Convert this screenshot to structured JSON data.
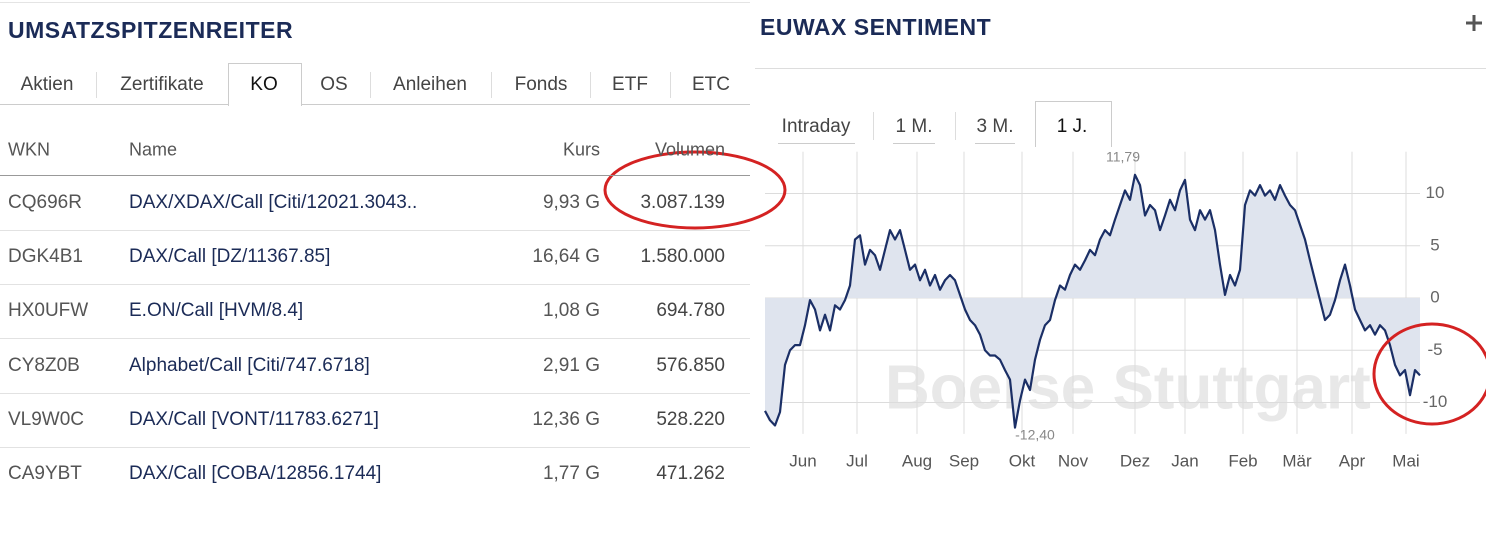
{
  "left_panel": {
    "title": "UMSATZSPITZENREITER",
    "tabs": [
      "Aktien",
      "Zertifikate",
      "KO",
      "OS",
      "Anleihen",
      "Fonds",
      "ETF",
      "ETC"
    ],
    "active_tab": 2,
    "table": {
      "columns": [
        "WKN",
        "Name",
        "Kurs",
        "Volumen"
      ],
      "rows": [
        [
          "CQ696R",
          "DAX/XDAX/Call [Citi/12021.3043..",
          "9,93 G",
          "3.087.139"
        ],
        [
          "DGK4B1",
          "DAX/Call [DZ/11367.85]",
          "16,64 G",
          "1.580.000"
        ],
        [
          "HX0UFW",
          "E.ON/Call [HVM/8.4]",
          "1,08 G",
          "694.780"
        ],
        [
          "CY8Z0B",
          "Alphabet/Call [Citi/747.6718]",
          "2,91 G",
          "576.850"
        ],
        [
          "VL9W0C",
          "DAX/Call [VONT/11783.6271]",
          "12,36 G",
          "528.220"
        ],
        [
          "CA9YBT",
          "DAX/Call [COBA/12856.1744]",
          "1,77 G",
          "471.262"
        ]
      ]
    }
  },
  "right_panel": {
    "title": "EUWAX SENTIMENT",
    "tabs": [
      "Intraday",
      "1 M.",
      "3 M.",
      "1 J."
    ],
    "active_tab": 3
  },
  "chart_data": {
    "type": "line",
    "watermark": "Boerse Stuttgart",
    "color": "#1b2f66",
    "area_color": "#dfe4ee",
    "grid": true,
    "values": [
      -10.8,
      -11.7,
      -12.2,
      -10.9,
      -6.4,
      -5.0,
      -4.5,
      -4.5,
      -2.6,
      -0.2,
      -1.1,
      -3.1,
      -1.6,
      -3.1,
      -0.7,
      -1.1,
      -0.2,
      1.2,
      5.6,
      6.0,
      3.2,
      4.6,
      4.1,
      2.7,
      4.6,
      6.5,
      5.6,
      6.5,
      4.6,
      2.7,
      3.2,
      1.7,
      2.7,
      1.2,
      2.2,
      0.8,
      1.7,
      2.2,
      1.7,
      0.3,
      -1.1,
      -2.1,
      -2.6,
      -3.5,
      -5.0,
      -5.5,
      -5.5,
      -5.9,
      -6.9,
      -7.8,
      -12.4,
      -9.8,
      -7.8,
      -8.8,
      -5.9,
      -4.0,
      -2.6,
      -2.1,
      -0.2,
      1.2,
      0.8,
      2.2,
      3.2,
      2.7,
      3.6,
      4.6,
      4.1,
      5.6,
      6.5,
      6.0,
      7.5,
      8.9,
      10.3,
      9.4,
      11.79,
      10.8,
      7.9,
      8.9,
      8.4,
      6.5,
      7.9,
      9.4,
      8.4,
      10.3,
      11.3,
      7.5,
      6.5,
      8.4,
      7.5,
      8.4,
      6.5,
      3.2,
      0.3,
      2.2,
      1.2,
      2.7,
      8.9,
      10.3,
      9.8,
      10.8,
      9.8,
      10.3,
      9.4,
      10.8,
      9.8,
      8.9,
      8.4,
      7.0,
      5.6,
      3.6,
      1.7,
      -0.2,
      -2.1,
      -1.6,
      -0.2,
      1.7,
      3.2,
      1.2,
      -1.1,
      -2.1,
      -3.1,
      -2.6,
      -3.5,
      -2.6,
      -3.1,
      -4.5,
      -6.4,
      -7.4,
      -6.9,
      -9.3,
      -6.9,
      -7.4
    ],
    "xlim": [
      0,
      131
    ],
    "xticks": [
      {
        "value": 7.6,
        "label": "Jun"
      },
      {
        "value": 18.4,
        "label": "Jul"
      },
      {
        "value": 30.4,
        "label": "Aug"
      },
      {
        "value": 39.8,
        "label": "Sep"
      },
      {
        "value": 51.4,
        "label": "Okt"
      },
      {
        "value": 61.6,
        "label": "Nov"
      },
      {
        "value": 74,
        "label": "Dez"
      },
      {
        "value": 84,
        "label": "Jan"
      },
      {
        "value": 95.6,
        "label": "Feb"
      },
      {
        "value": 106.4,
        "label": "Mär"
      },
      {
        "value": 117.4,
        "label": "Apr"
      },
      {
        "value": 128.2,
        "label": "Mai"
      }
    ],
    "ylim": [
      -13,
      14
    ],
    "yticks": [
      10,
      5,
      0,
      -5,
      -10
    ],
    "annotations": [
      {
        "text": "11,79",
        "x": 74,
        "y": 11.79
      },
      {
        "text": "-12,40",
        "x": 50,
        "y": -12.4
      }
    ]
  }
}
